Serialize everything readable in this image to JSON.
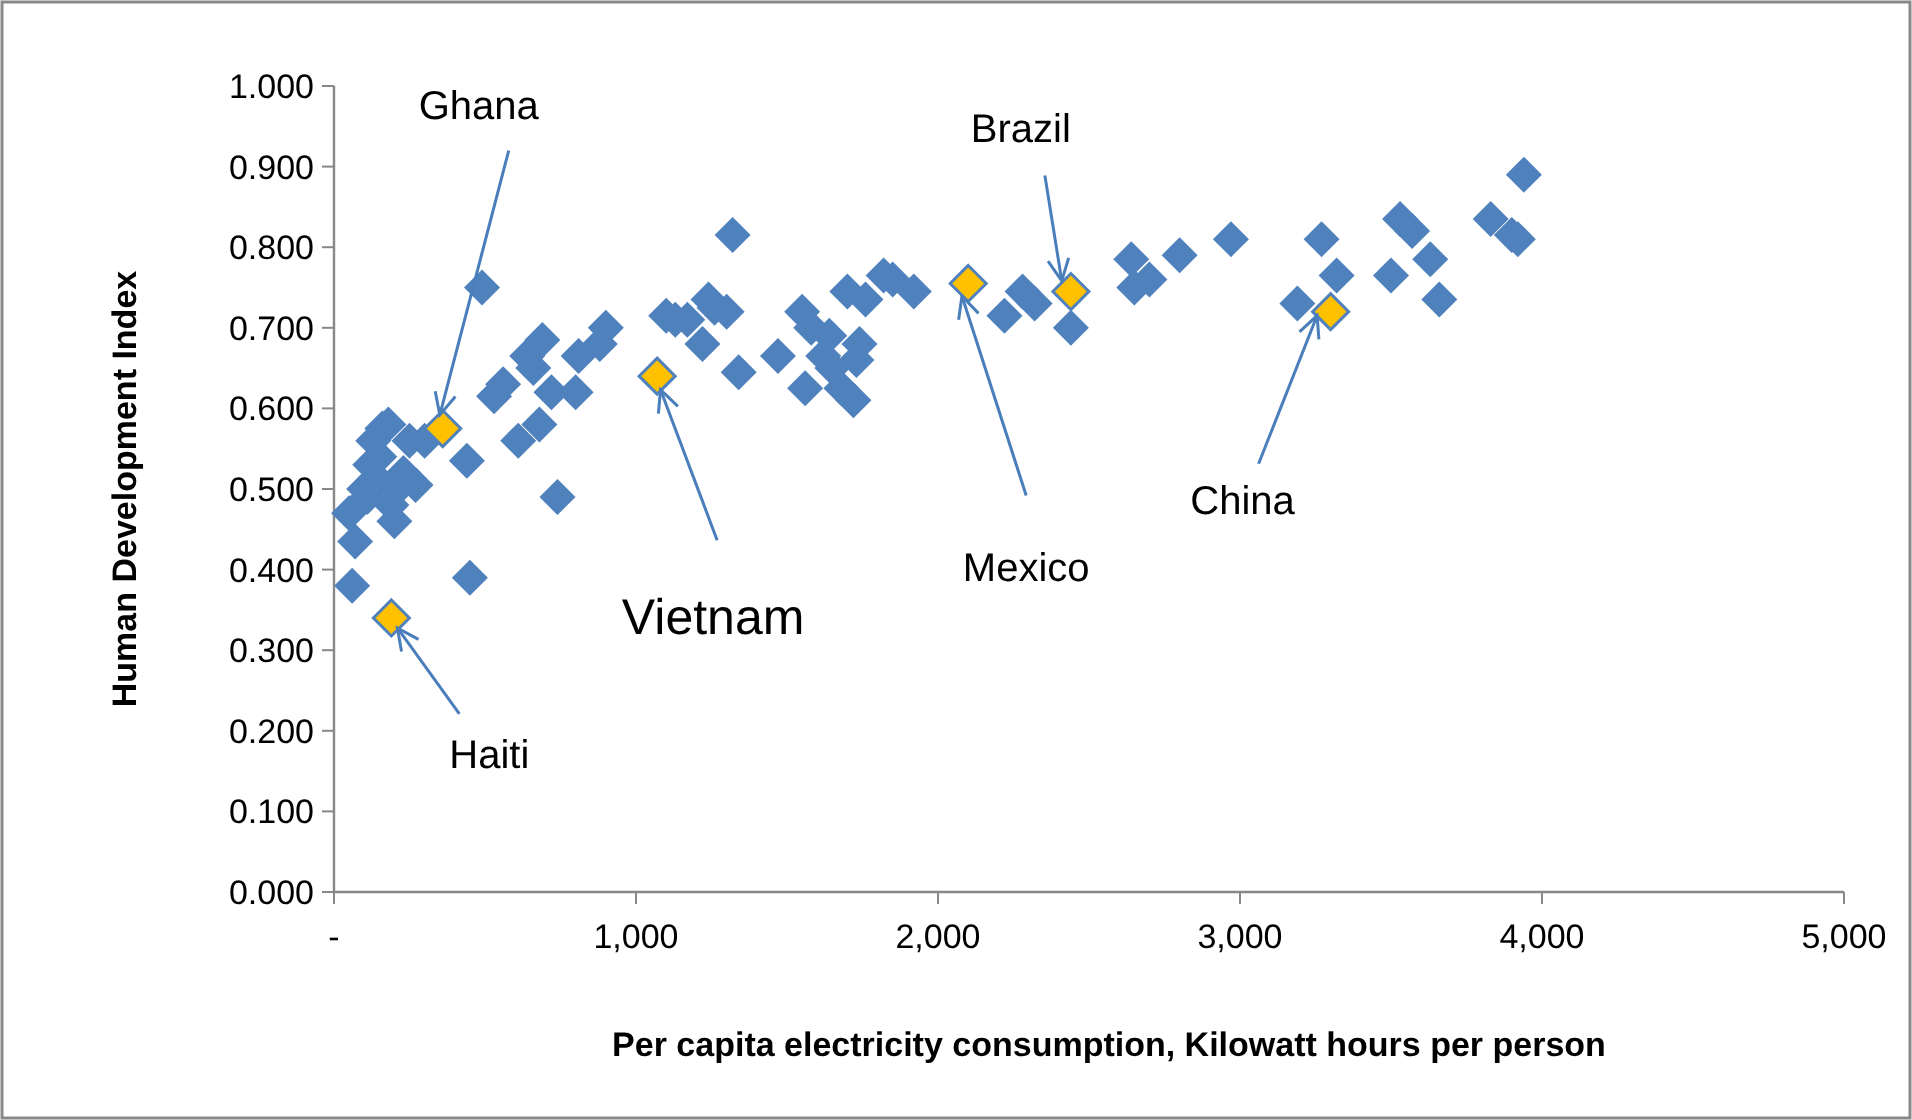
{
  "chart_data": {
    "type": "scatter",
    "xlabel": "Per capita electricity consumption, Kilowatt hours per person",
    "ylabel": "Human Development Index",
    "xlim": [
      0,
      5000
    ],
    "ylim": [
      0,
      1
    ],
    "xticks": [
      {
        "value": 0,
        "label": "-"
      },
      {
        "value": 1000,
        "label": "1,000"
      },
      {
        "value": 2000,
        "label": "2,000"
      },
      {
        "value": 3000,
        "label": "3,000"
      },
      {
        "value": 4000,
        "label": "4,000"
      },
      {
        "value": 5000,
        "label": "5,000"
      }
    ],
    "yticks": [
      {
        "value": 0,
        "label": "0.000"
      },
      {
        "value": 0.1,
        "label": "0.100"
      },
      {
        "value": 0.2,
        "label": "0.200"
      },
      {
        "value": 0.3,
        "label": "0.300"
      },
      {
        "value": 0.4,
        "label": "0.400"
      },
      {
        "value": 0.5,
        "label": "0.500"
      },
      {
        "value": 0.6,
        "label": "0.600"
      },
      {
        "value": 0.7,
        "label": "0.700"
      },
      {
        "value": 0.8,
        "label": "0.800"
      },
      {
        "value": 0.9,
        "label": "0.900"
      },
      {
        "value": 1,
        "label": "1.000"
      }
    ],
    "grid": false,
    "marker": "diamond",
    "series": [
      {
        "color": "#4f81bd",
        "x": [
          50,
          70,
          60,
          110,
          120,
          130,
          150,
          160,
          180,
          190,
          200,
          210,
          230,
          250,
          270,
          150,
          100,
          300,
          450,
          440,
          490,
          530,
          560,
          610,
          640,
          660,
          690,
          680,
          720,
          740,
          800,
          810,
          880,
          900,
          1100,
          1130,
          1170,
          1220,
          1240,
          1260,
          1300,
          1320,
          1340,
          1470,
          1550,
          1560,
          1580,
          1620,
          1640,
          1650,
          1680,
          1700,
          1720,
          1730,
          1740,
          1760,
          1820,
          1850,
          1920,
          2220,
          2280,
          2320,
          2440,
          2640,
          2650,
          2700,
          2800,
          2970,
          3190,
          3270,
          3320,
          3500,
          3530,
          3570,
          3630,
          3660,
          3830,
          3900,
          3920,
          3940
        ],
        "values": [
          0.47,
          0.435,
          0.38,
          0.49,
          0.53,
          0.56,
          0.51,
          0.575,
          0.58,
          0.48,
          0.46,
          0.5,
          0.52,
          0.56,
          0.505,
          0.54,
          0.5,
          0.56,
          0.39,
          0.535,
          0.75,
          0.615,
          0.63,
          0.56,
          0.665,
          0.65,
          0.685,
          0.58,
          0.62,
          0.49,
          0.62,
          0.665,
          0.68,
          0.7,
          0.715,
          0.71,
          0.71,
          0.68,
          0.735,
          0.725,
          0.72,
          0.815,
          0.645,
          0.665,
          0.72,
          0.625,
          0.7,
          0.665,
          0.69,
          0.65,
          0.625,
          0.745,
          0.61,
          0.66,
          0.68,
          0.735,
          0.765,
          0.76,
          0.745,
          0.715,
          0.745,
          0.73,
          0.7,
          0.785,
          0.75,
          0.76,
          0.79,
          0.81,
          0.73,
          0.81,
          0.765,
          0.765,
          0.835,
          0.82,
          0.785,
          0.735,
          0.835,
          0.815,
          0.81,
          0.89
        ]
      },
      {
        "color": "#ffc000",
        "x": [
          360,
          190,
          1070,
          2100,
          2440,
          3300
        ],
        "values": [
          0.575,
          0.34,
          0.64,
          0.755,
          0.745,
          0.72
        ]
      }
    ],
    "annotations": [
      {
        "text": "Ghana",
        "x": 360,
        "y": 0.575
      },
      {
        "text": "Haiti",
        "x": 190,
        "y": 0.34
      },
      {
        "text": "Vietnam",
        "x": 1070,
        "y": 0.64
      },
      {
        "text": "Mexico",
        "x": 2100,
        "y": 0.755
      },
      {
        "text": "Brazil",
        "x": 2440,
        "y": 0.745
      },
      {
        "text": "China",
        "x": 3300,
        "y": 0.72
      }
    ]
  }
}
